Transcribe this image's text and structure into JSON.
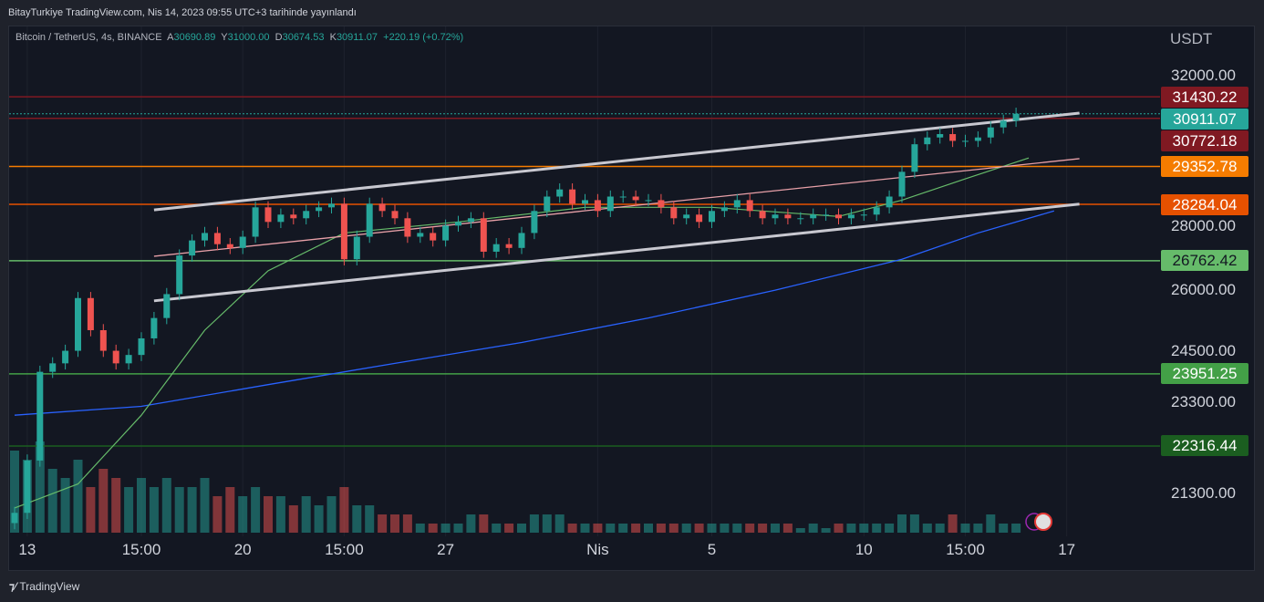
{
  "published": "BitayTurkiye TradingView.com, Nis 14, 2023 09:55 UTC+3 tarihinde yayınlandı",
  "legend": {
    "symbol": "Bitcoin / TetherUS, 4s, BINANCE",
    "open_label": "A",
    "open": "30690.89",
    "high_label": "Y",
    "high": "31000.00",
    "low_label": "D",
    "low": "30674.53",
    "close_label": "K",
    "close": "30911.07",
    "change": "+220.19 (+0.72%)"
  },
  "footer": "TradingView",
  "chart_data": {
    "type": "candlestick",
    "unit": "USDT",
    "y_scale": "log",
    "ylim": [
      20700,
      32600
    ],
    "y_ticks": [
      "32000.00",
      "28000.00",
      "26000.00",
      "24500.00",
      "23300.00",
      "21300.00"
    ],
    "y_tick_values": [
      32000,
      28000,
      26000,
      24500,
      23300,
      21300
    ],
    "x_ticks": [
      {
        "label": "13",
        "i": 1
      },
      {
        "label": "15:00",
        "i": 10
      },
      {
        "label": "20",
        "i": 18
      },
      {
        "label": "15:00",
        "i": 26
      },
      {
        "label": "27",
        "i": 34
      },
      {
        "label": "Nis",
        "i": 46
      },
      {
        "label": "5",
        "i": 55
      },
      {
        "label": "10",
        "i": 67
      },
      {
        "label": "15:00",
        "i": 75
      },
      {
        "label": "17",
        "i": 83
      }
    ],
    "closes": [
      20900,
      22000,
      24000,
      24200,
      24500,
      25800,
      25000,
      24500,
      24200,
      24400,
      24800,
      25300,
      25900,
      26900,
      27300,
      27500,
      27200,
      27100,
      27400,
      28200,
      27800,
      28000,
      27900,
      28100,
      28200,
      28300,
      26800,
      27400,
      28300,
      28100,
      27900,
      27400,
      27500,
      27300,
      27700,
      27800,
      27900,
      27000,
      27200,
      27100,
      27500,
      28100,
      28500,
      28700,
      28300,
      28400,
      28100,
      28500,
      28500,
      28400,
      28400,
      28200,
      27900,
      28000,
      27800,
      28100,
      28200,
      28400,
      28100,
      27900,
      28000,
      27900,
      27900,
      28000,
      28000,
      27900,
      28000,
      28000,
      28200,
      28500,
      29200,
      30000,
      30200,
      30300,
      30100,
      30100,
      30200,
      30500,
      30700,
      30911
    ],
    "volumes": [
      9,
      8,
      10,
      7,
      6,
      8,
      5,
      7,
      6,
      5,
      6,
      5,
      6,
      5,
      5,
      6,
      4,
      5,
      4,
      5,
      4,
      4,
      3,
      4,
      3,
      4,
      5,
      3,
      3,
      2,
      2,
      2,
      1,
      1,
      1,
      1,
      2,
      2,
      1,
      1,
      1,
      2,
      2,
      2,
      1,
      1,
      1,
      1,
      1,
      1,
      1,
      1,
      1,
      1,
      1,
      1,
      1,
      1,
      1,
      1,
      1,
      1,
      0.5,
      1,
      0.5,
      1,
      1,
      1,
      1,
      1,
      2,
      2,
      1,
      1,
      2,
      1,
      1,
      2,
      1,
      1
    ],
    "horizontal_levels": [
      {
        "value": "31430.22",
        "price": 31430.22,
        "color": "#801922"
      },
      {
        "value": "30911.07",
        "price": 30911.07,
        "color": "#26a69a",
        "current": true
      },
      {
        "value": "30772.18",
        "price": 30772.18,
        "color": "#801922"
      },
      {
        "value": "29352.78",
        "price": 29352.78,
        "color": "#f57c00"
      },
      {
        "value": "28284.04",
        "price": 28284.04,
        "color": "#e65100"
      },
      {
        "value": "26762.42",
        "price": 26762.42,
        "color": "#66bb6a"
      },
      {
        "value": "23951.25",
        "price": 23951.25,
        "color": "#43a047"
      },
      {
        "value": "22316.44",
        "price": 22316.44,
        "color": "#1b5e20"
      }
    ],
    "channel": {
      "upper": [
        [
          11,
          28130
        ],
        [
          84,
          30930
        ]
      ],
      "middle": [
        [
          11,
          26880
        ],
        [
          84,
          29580
        ]
      ],
      "lower": [
        [
          11,
          25730
        ],
        [
          84,
          28290
        ]
      ],
      "color": "#c8c8d0",
      "middle_color": "#e8a0a8"
    },
    "ma_fast": {
      "color": "#66bb6a",
      "points": [
        [
          0,
          21000
        ],
        [
          5,
          21500
        ],
        [
          10,
          23000
        ],
        [
          15,
          25000
        ],
        [
          20,
          26500
        ],
        [
          26,
          27500
        ],
        [
          35,
          27800
        ],
        [
          45,
          28200
        ],
        [
          55,
          28200
        ],
        [
          65,
          27950
        ],
        [
          70,
          28400
        ],
        [
          75,
          29000
        ],
        [
          80,
          29600
        ]
      ]
    },
    "ma_slow": {
      "color": "#2962ff",
      "points": [
        [
          0,
          23000
        ],
        [
          10,
          23200
        ],
        [
          20,
          23700
        ],
        [
          30,
          24200
        ],
        [
          40,
          24700
        ],
        [
          50,
          25300
        ],
        [
          60,
          26000
        ],
        [
          70,
          26800
        ],
        [
          76,
          27500
        ],
        [
          82,
          28100
        ]
      ]
    },
    "colors": {
      "up": "#26a69a",
      "down": "#ef5350",
      "background": "#131722"
    }
  }
}
